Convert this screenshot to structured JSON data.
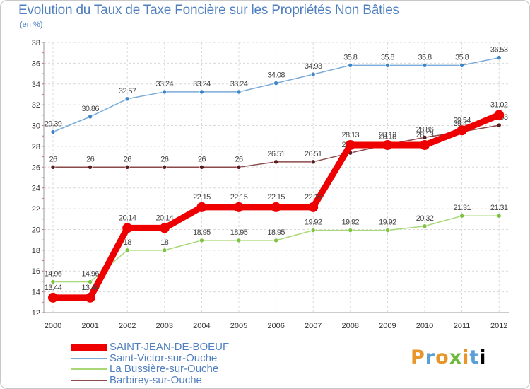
{
  "chart_data": {
    "type": "line",
    "title": "Evolution du Taux de Taxe Foncière sur les Propriétés Non Bâties",
    "subtitle": "(en %)",
    "xlabel": "",
    "ylabel": "(en %)",
    "ylim": [
      12,
      38
    ],
    "yticks": [
      "12",
      "14",
      "16",
      "18",
      "20",
      "22",
      "24",
      "26",
      "28",
      "30",
      "32",
      "34",
      "36",
      "38"
    ],
    "categories": [
      "2000",
      "2001",
      "2002",
      "2003",
      "2004",
      "2005",
      "2006",
      "2007",
      "2008",
      "2009",
      "2010",
      "2011",
      "2012"
    ],
    "grid": true,
    "legend_position": "bottom-left",
    "series": [
      {
        "name": "Saint-Victor-sur-Ouche",
        "color": "#7aabd8",
        "marker_color": "#3d85c6",
        "values": [
          29.39,
          30.86,
          32.57,
          33.24,
          33.24,
          33.24,
          34.08,
          34.93,
          35.8,
          35.8,
          35.8,
          35.8,
          36.53
        ],
        "labels": [
          "29.39",
          "30.86",
          "32.57",
          "33.24",
          "33.24",
          "33.24",
          "34.08",
          "34.93",
          "35.8",
          "35.8",
          "35.8",
          "35.8",
          "36.53"
        ]
      },
      {
        "name": "La Bussière-sur-Ouche",
        "color": "#a8d877",
        "marker_color": "#7dc243",
        "values": [
          14.96,
          14.96,
          18,
          18,
          18.95,
          18.95,
          18.95,
          19.92,
          19.92,
          19.92,
          20.32,
          21.31,
          21.31
        ],
        "labels": [
          "14.96",
          "14.96",
          "18",
          "18",
          "18.95",
          "18.95",
          "18.95",
          "19.92",
          "19.92",
          "19.92",
          "20.32",
          "21.31",
          "21.31"
        ]
      },
      {
        "name": "Barbirey-sur-Ouche",
        "color": "#8b4a4a",
        "marker_color": "#5a1a1a",
        "values": [
          26,
          26,
          26,
          26,
          26,
          26,
          26.51,
          26.51,
          27.37,
          28.18,
          28.86,
          29.41,
          30.03
        ],
        "labels": [
          "26",
          "26",
          "26",
          "26",
          "26",
          "26",
          "26.51",
          "26.51",
          "27.37",
          "28.18",
          "28.86",
          "29.41",
          "30.03"
        ]
      },
      {
        "name": "SAINT-JEAN-DE-BOEUF",
        "color": "#ee0000",
        "marker_color": "#ee0000",
        "values": [
          13.44,
          13.44,
          20.14,
          20.14,
          22.15,
          22.15,
          22.15,
          22.15,
          28.13,
          28.13,
          28.13,
          29.54,
          31.02
        ],
        "labels": [
          "13.44",
          "13.44",
          "20.14",
          "20.14",
          "22.15",
          "22.15",
          "22.15",
          "22.15",
          "28.13",
          "28.13",
          "28.13",
          "29.54",
          "31.02"
        ]
      }
    ],
    "legend_order": [
      "SAINT-JEAN-DE-BOEUF",
      "Saint-Victor-sur-Ouche",
      "La Bussière-sur-Ouche",
      "Barbirey-sur-Ouche"
    ]
  },
  "branding": {
    "logo_letters": [
      "P",
      "r",
      "o",
      "x",
      "i",
      "t",
      "i"
    ]
  }
}
